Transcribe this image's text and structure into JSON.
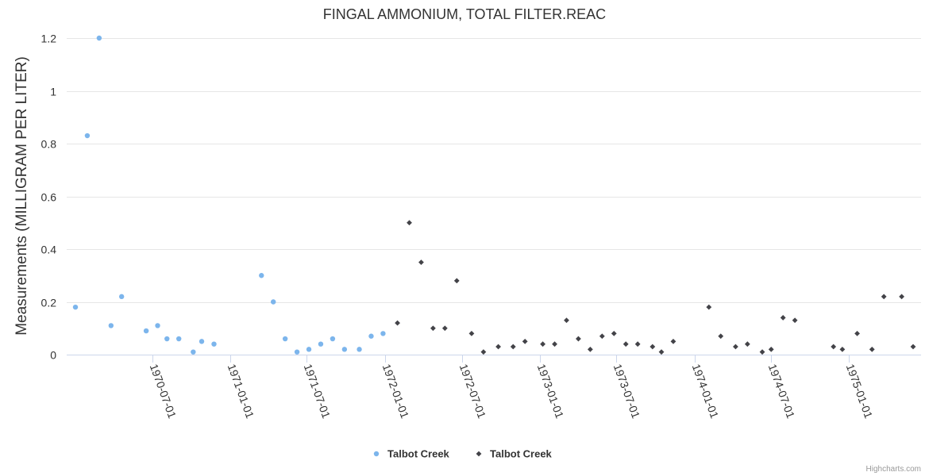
{
  "chart_data": {
    "type": "scatter",
    "title": "FINGAL AMMONIUM, TOTAL FILTER.REAC",
    "ylabel": "Measurements (MILLIGRAM PER LITER)",
    "xlabel": "",
    "ylim": [
      0,
      1.2
    ],
    "yticks": [
      0,
      0.2,
      0.4,
      0.6,
      0.8,
      1,
      1.2
    ],
    "ytick_labels": [
      "0",
      "0.2",
      "0.4",
      "0.6",
      "0.8",
      "1",
      "1.2"
    ],
    "xlim": [
      "1970-01-01",
      "1975-06-01"
    ],
    "xticks": [
      "1970-07-01",
      "1971-01-01",
      "1971-07-01",
      "1972-01-01",
      "1972-07-01",
      "1973-01-01",
      "1973-07-01",
      "1974-01-01",
      "1974-07-01",
      "1975-01-01"
    ],
    "grid": true,
    "legend_position": "bottom-center",
    "series": [
      {
        "name": "Talbot Creek",
        "marker": "circle",
        "color": "#7cb5ec",
        "points": [
          {
            "x": "1970-01-01",
            "y": 0.18
          },
          {
            "x": "1970-01-29",
            "y": 0.83
          },
          {
            "x": "1970-02-26",
            "y": 1.2
          },
          {
            "x": "1970-03-26",
            "y": 0.11
          },
          {
            "x": "1970-04-20",
            "y": 0.22
          },
          {
            "x": "1970-06-17",
            "y": 0.09
          },
          {
            "x": "1970-07-14",
            "y": 0.11
          },
          {
            "x": "1970-08-05",
            "y": 0.06
          },
          {
            "x": "1970-09-02",
            "y": 0.06
          },
          {
            "x": "1970-10-06",
            "y": 0.01
          },
          {
            "x": "1970-10-26",
            "y": 0.05
          },
          {
            "x": "1970-11-24",
            "y": 0.04
          },
          {
            "x": "1971-03-16",
            "y": 0.3
          },
          {
            "x": "1971-04-13",
            "y": 0.2
          },
          {
            "x": "1971-05-11",
            "y": 0.06
          },
          {
            "x": "1971-06-08",
            "y": 0.01
          },
          {
            "x": "1971-07-06",
            "y": 0.02
          },
          {
            "x": "1971-08-03",
            "y": 0.04
          },
          {
            "x": "1971-08-31",
            "y": 0.06
          },
          {
            "x": "1971-09-28",
            "y": 0.02
          },
          {
            "x": "1971-11-02",
            "y": 0.02
          },
          {
            "x": "1971-11-30",
            "y": 0.07
          },
          {
            "x": "1971-12-28",
            "y": 0.08
          }
        ]
      },
      {
        "name": "Talbot Creek",
        "marker": "diamond",
        "color": "#434348",
        "points": [
          {
            "x": "1972-01-31",
            "y": 0.12
          },
          {
            "x": "1972-02-28",
            "y": 0.5
          },
          {
            "x": "1972-03-27",
            "y": 0.35
          },
          {
            "x": "1972-04-24",
            "y": 0.1
          },
          {
            "x": "1972-05-22",
            "y": 0.1
          },
          {
            "x": "1972-06-19",
            "y": 0.28
          },
          {
            "x": "1972-07-24",
            "y": 0.08
          },
          {
            "x": "1972-08-21",
            "y": 0.01
          },
          {
            "x": "1972-09-25",
            "y": 0.03
          },
          {
            "x": "1972-10-30",
            "y": 0.03
          },
          {
            "x": "1972-11-27",
            "y": 0.05
          },
          {
            "x": "1973-01-08",
            "y": 0.04
          },
          {
            "x": "1973-02-05",
            "y": 0.04
          },
          {
            "x": "1973-03-05",
            "y": 0.13
          },
          {
            "x": "1973-04-02",
            "y": 0.06
          },
          {
            "x": "1973-04-30",
            "y": 0.02
          },
          {
            "x": "1973-05-28",
            "y": 0.07
          },
          {
            "x": "1973-06-25",
            "y": 0.08
          },
          {
            "x": "1973-07-23",
            "y": 0.04
          },
          {
            "x": "1973-08-20",
            "y": 0.04
          },
          {
            "x": "1973-09-24",
            "y": 0.03
          },
          {
            "x": "1973-10-15",
            "y": 0.01
          },
          {
            "x": "1973-11-12",
            "y": 0.05
          },
          {
            "x": "1974-02-04",
            "y": 0.18
          },
          {
            "x": "1974-03-04",
            "y": 0.07
          },
          {
            "x": "1974-04-08",
            "y": 0.03
          },
          {
            "x": "1974-05-06",
            "y": 0.04
          },
          {
            "x": "1974-06-10",
            "y": 0.01
          },
          {
            "x": "1974-07-01",
            "y": 0.02
          },
          {
            "x": "1974-07-29",
            "y": 0.14
          },
          {
            "x": "1974-08-26",
            "y": 0.13
          },
          {
            "x": "1974-11-25",
            "y": 0.03
          },
          {
            "x": "1974-12-16",
            "y": 0.02
          },
          {
            "x": "1975-01-20",
            "y": 0.08
          },
          {
            "x": "1975-02-24",
            "y": 0.02
          },
          {
            "x": "1975-03-24",
            "y": 0.22
          },
          {
            "x": "1975-05-05",
            "y": 0.22
          },
          {
            "x": "1975-06-01",
            "y": 0.03
          }
        ]
      }
    ]
  },
  "credit": "Highcharts.com"
}
